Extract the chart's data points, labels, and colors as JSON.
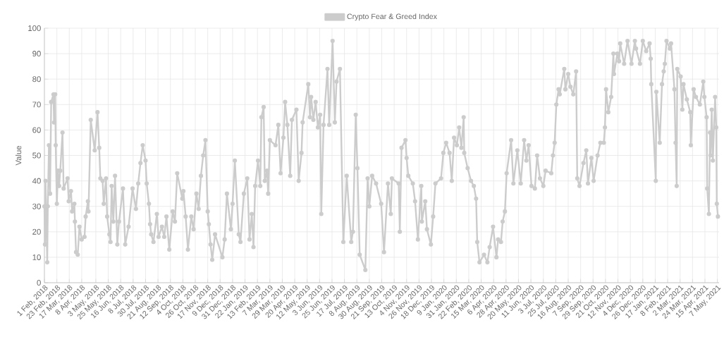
{
  "chart_data": {
    "type": "line",
    "ylabel": "Value",
    "grid": true,
    "legend": "top",
    "marker": "circle",
    "line_style": "solid",
    "ylim": [
      0,
      100
    ],
    "yticks": [
      0,
      10,
      20,
      30,
      40,
      50,
      60,
      70,
      80,
      90,
      100
    ],
    "xlim": [
      "2018-02-01",
      "2021-05-10"
    ],
    "xticks": [
      {
        "value": "2018-02-01",
        "label": "1 Feb, 2018"
      },
      {
        "value": "2018-02-23",
        "label": "23 Feb, 2018"
      },
      {
        "value": "2018-03-17",
        "label": "17 Mar, 2018"
      },
      {
        "value": "2018-04-08",
        "label": "8 Apr, 2018"
      },
      {
        "value": "2018-05-03",
        "label": "3 May, 2018"
      },
      {
        "value": "2018-05-25",
        "label": "25 May, 2018"
      },
      {
        "value": "2018-06-16",
        "label": "16 Jun, 2018"
      },
      {
        "value": "2018-07-08",
        "label": "8 Jul, 2018"
      },
      {
        "value": "2018-07-30",
        "label": "30 Jul, 2018"
      },
      {
        "value": "2018-08-21",
        "label": "21 Aug, 2018"
      },
      {
        "value": "2018-09-12",
        "label": "12 Sep, 2018"
      },
      {
        "value": "2018-10-04",
        "label": "4 Oct, 2018"
      },
      {
        "value": "2018-10-26",
        "label": "26 Oct, 2018"
      },
      {
        "value": "2018-11-17",
        "label": "17 Nov, 2018"
      },
      {
        "value": "2018-12-09",
        "label": "9 Dec, 2018"
      },
      {
        "value": "2018-12-31",
        "label": "31 Dec, 2018"
      },
      {
        "value": "2019-01-22",
        "label": "22 Jan, 2019"
      },
      {
        "value": "2019-02-13",
        "label": "13 Feb, 2019"
      },
      {
        "value": "2019-03-07",
        "label": "7 Mar, 2019"
      },
      {
        "value": "2019-03-29",
        "label": "29 Mar, 2019"
      },
      {
        "value": "2019-04-20",
        "label": "20 Apr, 2019"
      },
      {
        "value": "2019-05-12",
        "label": "12 May, 2019"
      },
      {
        "value": "2019-06-03",
        "label": "3 Jun, 2019"
      },
      {
        "value": "2019-06-25",
        "label": "25 Jun, 2019"
      },
      {
        "value": "2019-07-17",
        "label": "17 Jul, 2019"
      },
      {
        "value": "2019-08-08",
        "label": "8 Aug, 2019"
      },
      {
        "value": "2019-08-30",
        "label": "30 Aug, 2019"
      },
      {
        "value": "2019-09-21",
        "label": "21 Sep, 2019"
      },
      {
        "value": "2019-10-13",
        "label": "13 Oct, 2019"
      },
      {
        "value": "2019-11-04",
        "label": "4 Nov, 2019"
      },
      {
        "value": "2019-11-26",
        "label": "26 Nov, 2019"
      },
      {
        "value": "2019-12-18",
        "label": "18 Dec, 2019"
      },
      {
        "value": "2020-01-09",
        "label": "9 Jan, 2020"
      },
      {
        "value": "2020-01-31",
        "label": "31 Jan, 2020"
      },
      {
        "value": "2020-02-22",
        "label": "22 Feb, 2020"
      },
      {
        "value": "2020-03-15",
        "label": "15 Mar, 2020"
      },
      {
        "value": "2020-04-06",
        "label": "6 Apr, 2020"
      },
      {
        "value": "2020-04-28",
        "label": "28 Apr, 2020"
      },
      {
        "value": "2020-05-20",
        "label": "20 May, 2020"
      },
      {
        "value": "2020-06-11",
        "label": "11 Jun, 2020"
      },
      {
        "value": "2020-07-03",
        "label": "3 Jul, 2020"
      },
      {
        "value": "2020-07-25",
        "label": "25 Jul, 2020"
      },
      {
        "value": "2020-08-16",
        "label": "16 Aug, 2020"
      },
      {
        "value": "2020-09-07",
        "label": "7 Sep, 2020"
      },
      {
        "value": "2020-09-29",
        "label": "29 Sep, 2020"
      },
      {
        "value": "2020-10-21",
        "label": "21 Oct, 2020"
      },
      {
        "value": "2020-11-12",
        "label": "12 Nov, 2020"
      },
      {
        "value": "2020-12-04",
        "label": "4 Dec, 2020"
      },
      {
        "value": "2020-12-26",
        "label": "26 Dec, 2020"
      },
      {
        "value": "2021-01-17",
        "label": "17 Jan, 2021"
      },
      {
        "value": "2021-02-08",
        "label": "8 Feb, 2021"
      },
      {
        "value": "2021-03-02",
        "label": "2 Mar, 2021"
      },
      {
        "value": "2021-03-24",
        "label": "24 Mar, 2021"
      },
      {
        "value": "2021-04-15",
        "label": "15 Apr, 2021"
      },
      {
        "value": "2021-05-07",
        "label": "7 May, 2021"
      }
    ],
    "x": [
      "2018-02-01",
      "2018-02-02",
      "2018-02-03",
      "2018-02-06",
      "2018-02-07",
      "2018-02-09",
      "2018-02-11",
      "2018-02-13",
      "2018-02-17",
      "2018-02-18",
      "2018-02-20",
      "2018-02-21",
      "2018-02-23",
      "2018-02-25",
      "2018-02-27",
      "2018-03-01",
      "2018-03-05",
      "2018-03-07",
      "2018-03-14",
      "2018-03-16",
      "2018-03-20",
      "2018-03-22",
      "2018-03-26",
      "2018-03-27",
      "2018-03-29",
      "2018-04-01",
      "2018-04-04",
      "2018-04-08",
      "2018-04-13",
      "2018-04-15",
      "2018-04-19",
      "2018-04-20",
      "2018-04-24",
      "2018-05-01",
      "2018-05-06",
      "2018-05-09",
      "2018-05-11",
      "2018-05-15",
      "2018-05-17",
      "2018-05-21",
      "2018-05-23",
      "2018-05-27",
      "2018-05-29",
      "2018-05-31",
      "2018-06-03",
      "2018-06-06",
      "2018-06-10",
      "2018-06-13",
      "2018-06-20",
      "2018-06-24",
      "2018-06-30",
      "2018-07-07",
      "2018-07-13",
      "2018-07-17",
      "2018-07-21",
      "2018-07-25",
      "2018-07-30",
      "2018-08-01",
      "2018-08-05",
      "2018-08-07",
      "2018-08-09",
      "2018-08-13",
      "2018-08-19",
      "2018-08-22",
      "2018-08-28",
      "2018-09-01",
      "2018-09-05",
      "2018-09-10",
      "2018-09-16",
      "2018-09-20",
      "2018-09-24",
      "2018-10-03",
      "2018-10-05",
      "2018-10-09",
      "2018-10-13",
      "2018-10-19",
      "2018-10-23",
      "2018-10-28",
      "2018-11-01",
      "2018-11-05",
      "2018-11-09",
      "2018-11-13",
      "2018-11-17",
      "2018-11-19",
      "2018-11-22",
      "2018-11-25",
      "2018-11-30",
      "2018-12-13",
      "2018-12-17",
      "2018-12-21",
      "2018-12-28",
      "2018-12-31",
      "2019-01-04",
      "2019-01-11",
      "2019-01-14",
      "2019-01-20",
      "2019-01-26",
      "2019-01-30",
      "2019-02-03",
      "2019-02-06",
      "2019-02-09",
      "2019-02-14",
      "2019-02-18",
      "2019-02-20",
      "2019-02-24",
      "2019-02-26",
      "2019-03-02",
      "2019-03-04",
      "2019-03-07",
      "2019-03-17",
      "2019-03-22",
      "2019-03-26",
      "2019-03-31",
      "2019-04-03",
      "2019-04-07",
      "2019-04-12",
      "2019-04-15",
      "2019-04-23",
      "2019-04-27",
      "2019-05-02",
      "2019-05-04",
      "2019-05-14",
      "2019-05-17",
      "2019-05-19",
      "2019-05-23",
      "2019-05-27",
      "2019-05-31",
      "2019-06-04",
      "2019-06-06",
      "2019-06-10",
      "2019-06-17",
      "2019-06-20",
      "2019-06-26",
      "2019-06-30",
      "2019-07-03",
      "2019-07-09",
      "2019-07-15",
      "2019-07-21",
      "2019-07-29",
      "2019-08-01",
      "2019-08-06",
      "2019-08-09",
      "2019-08-13",
      "2019-08-23",
      "2019-08-27",
      "2019-08-30",
      "2019-09-04",
      "2019-09-11",
      "2019-09-20",
      "2019-09-25",
      "2019-10-02",
      "2019-10-07",
      "2019-10-09",
      "2019-10-21",
      "2019-10-23",
      "2019-10-26",
      "2019-11-02",
      "2019-11-04",
      "2019-11-07",
      "2019-11-15",
      "2019-11-19",
      "2019-11-24",
      "2019-11-30",
      "2019-12-01",
      "2019-12-07",
      "2019-12-10",
      "2019-12-17",
      "2019-12-21",
      "2019-12-25",
      "2020-01-04",
      "2020-01-08",
      "2020-01-13",
      "2020-01-19",
      "2020-01-23",
      "2020-01-27",
      "2020-02-01",
      "2020-02-05",
      "2020-02-09",
      "2020-02-13",
      "2020-02-14",
      "2020-02-20",
      "2020-02-26",
      "2020-03-02",
      "2020-03-06",
      "2020-03-08",
      "2020-03-12",
      "2020-03-20",
      "2020-03-26",
      "2020-03-30",
      "2020-04-05",
      "2020-04-11",
      "2020-04-14",
      "2020-04-19",
      "2020-04-22",
      "2020-04-26",
      "2020-04-29",
      "2020-05-07",
      "2020-05-11",
      "2020-05-18",
      "2020-05-24",
      "2020-05-30",
      "2020-06-03",
      "2020-06-07",
      "2020-06-12",
      "2020-06-18",
      "2020-06-22",
      "2020-06-27",
      "2020-07-03",
      "2020-07-07",
      "2020-07-17",
      "2020-07-20",
      "2020-07-23",
      "2020-07-26",
      "2020-07-30",
      "2020-08-01",
      "2020-08-09",
      "2020-08-11",
      "2020-08-16",
      "2020-08-20",
      "2020-08-25",
      "2020-08-30",
      "2020-09-01",
      "2020-09-05",
      "2020-09-12",
      "2020-09-17",
      "2020-09-20",
      "2020-09-26",
      "2020-09-30",
      "2020-10-07",
      "2020-10-12",
      "2020-10-18",
      "2020-10-20",
      "2020-10-22",
      "2020-10-26",
      "2020-10-31",
      "2020-11-04",
      "2020-11-05",
      "2020-11-11",
      "2020-11-14",
      "2020-11-16",
      "2020-11-23",
      "2020-11-29",
      "2020-12-06",
      "2020-12-12",
      "2020-12-14",
      "2020-12-21",
      "2020-12-26",
      "2021-01-01",
      "2021-01-07",
      "2021-01-09",
      "2021-01-10",
      "2021-01-18",
      "2021-01-19",
      "2021-01-25",
      "2021-01-29",
      "2021-02-01",
      "2021-02-03",
      "2021-02-06",
      "2021-02-12",
      "2021-02-14",
      "2021-02-20",
      "2021-02-22",
      "2021-02-24",
      "2021-02-25",
      "2021-03-03",
      "2021-03-06",
      "2021-03-08",
      "2021-03-14",
      "2021-03-20",
      "2021-03-21",
      "2021-03-26",
      "2021-03-30",
      "2021-04-06",
      "2021-04-12",
      "2021-04-14",
      "2021-04-18",
      "2021-04-19",
      "2021-04-22",
      "2021-04-24",
      "2021-04-25",
      "2021-04-27",
      "2021-04-29",
      "2021-05-03",
      "2021-05-05",
      "2021-05-06",
      "2021-05-08"
    ],
    "series": [
      {
        "name": "Crypto Fear & Greed Index",
        "color": "#cccccc",
        "values": [
          30,
          15,
          40,
          8,
          30,
          54,
          35,
          71,
          74,
          63,
          74,
          54,
          31,
          44,
          38,
          44,
          59,
          37,
          41,
          32,
          36,
          28,
          31,
          24,
          12,
          11,
          22,
          17,
          18,
          26,
          32,
          28,
          64,
          52,
          67,
          53,
          41,
          40,
          31,
          41,
          26,
          19,
          16,
          38,
          24,
          42,
          15,
          24,
          37,
          15,
          22,
          37,
          29,
          39,
          47,
          54,
          48,
          39,
          31,
          23,
          19,
          16,
          27,
          18,
          22,
          18,
          26,
          13,
          28,
          24,
          43,
          33,
          36,
          26,
          13,
          26,
          21,
          35,
          29,
          42,
          50,
          56,
          28,
          23,
          15,
          9,
          19,
          10,
          17,
          35,
          21,
          31,
          48,
          19,
          16,
          35,
          41,
          17,
          27,
          14,
          38,
          48,
          38,
          65,
          69,
          40,
          44,
          35,
          56,
          54,
          62,
          43,
          57,
          71,
          62,
          42,
          64,
          68,
          40,
          51,
          63,
          78,
          65,
          73,
          64,
          71,
          61,
          66,
          27,
          62,
          84,
          62,
          95,
          63,
          79,
          84,
          16,
          42,
          16,
          20,
          66,
          45,
          11,
          5,
          41,
          30,
          42,
          39,
          31,
          12,
          39,
          27,
          41,
          39,
          20,
          53,
          56,
          49,
          42,
          39,
          32,
          17,
          38,
          24,
          32,
          21,
          15,
          26,
          39,
          41,
          51,
          55,
          51,
          40,
          57,
          54,
          61,
          53,
          65,
          51,
          45,
          40,
          38,
          33,
          16,
          8,
          11,
          8,
          14,
          22,
          10,
          17,
          16,
          24,
          28,
          43,
          56,
          39,
          52,
          39,
          56,
          48,
          54,
          38,
          37,
          50,
          41,
          38,
          44,
          43,
          50,
          55,
          70,
          76,
          74,
          84,
          76,
          82,
          77,
          74,
          83,
          41,
          38,
          47,
          52,
          39,
          49,
          40,
          50,
          55,
          55,
          61,
          76,
          67,
          73,
          90,
          82,
          90,
          87,
          94,
          86,
          95,
          86,
          95,
          92,
          86,
          95,
          91,
          94,
          88,
          78,
          40,
          75,
          55,
          78,
          83,
          86,
          95,
          92,
          94,
          76,
          55,
          38,
          84,
          81,
          68,
          78,
          72,
          67,
          54,
          76,
          73,
          70,
          79,
          73,
          65,
          37,
          27,
          59,
          50,
          68,
          48,
          73,
          61,
          31,
          26
        ]
      }
    ]
  }
}
